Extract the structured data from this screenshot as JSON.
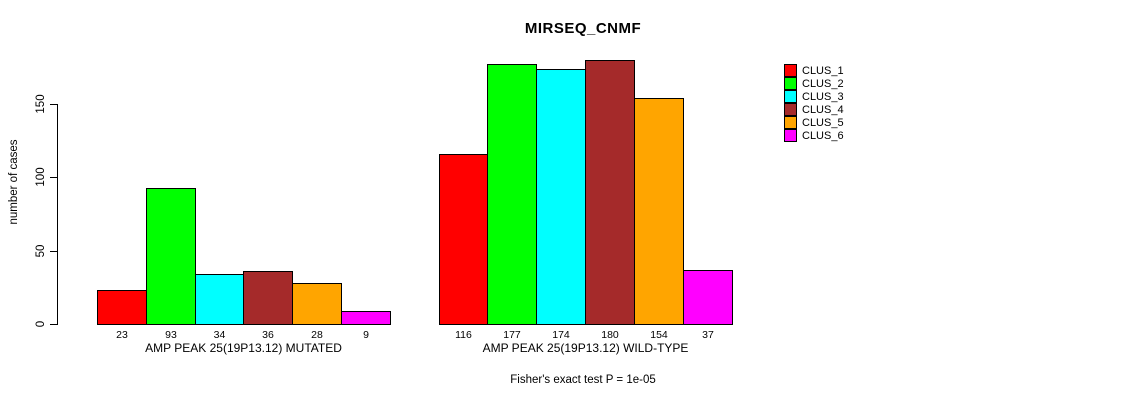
{
  "title": "MIRSEQ_CNMF",
  "chart_data": {
    "type": "bar",
    "title": "MIRSEQ_CNMF",
    "xlabel": "",
    "ylabel": "number of cases",
    "ylim": [
      0,
      185
    ],
    "y_ticks": [
      0,
      50,
      100,
      150
    ],
    "grid": false,
    "legend_position": "right",
    "legend": [
      "CLUS_1",
      "CLUS_2",
      "CLUS_3",
      "CLUS_4",
      "CLUS_5",
      "CLUS_6"
    ],
    "series_colors": [
      "#FF0000",
      "#00FF00",
      "#00FFFF",
      "#A52A2A",
      "#FFA500",
      "#FF00FF"
    ],
    "groups": [
      {
        "label": "AMP PEAK 25(19P13.12) MUTATED",
        "values": [
          23,
          93,
          34,
          36,
          28,
          9
        ]
      },
      {
        "label": "AMP PEAK 25(19P13.12) WILD-TYPE",
        "values": [
          116,
          177,
          174,
          180,
          154,
          37
        ]
      }
    ],
    "annotation": "Fisher's exact test P = 1e-05"
  }
}
